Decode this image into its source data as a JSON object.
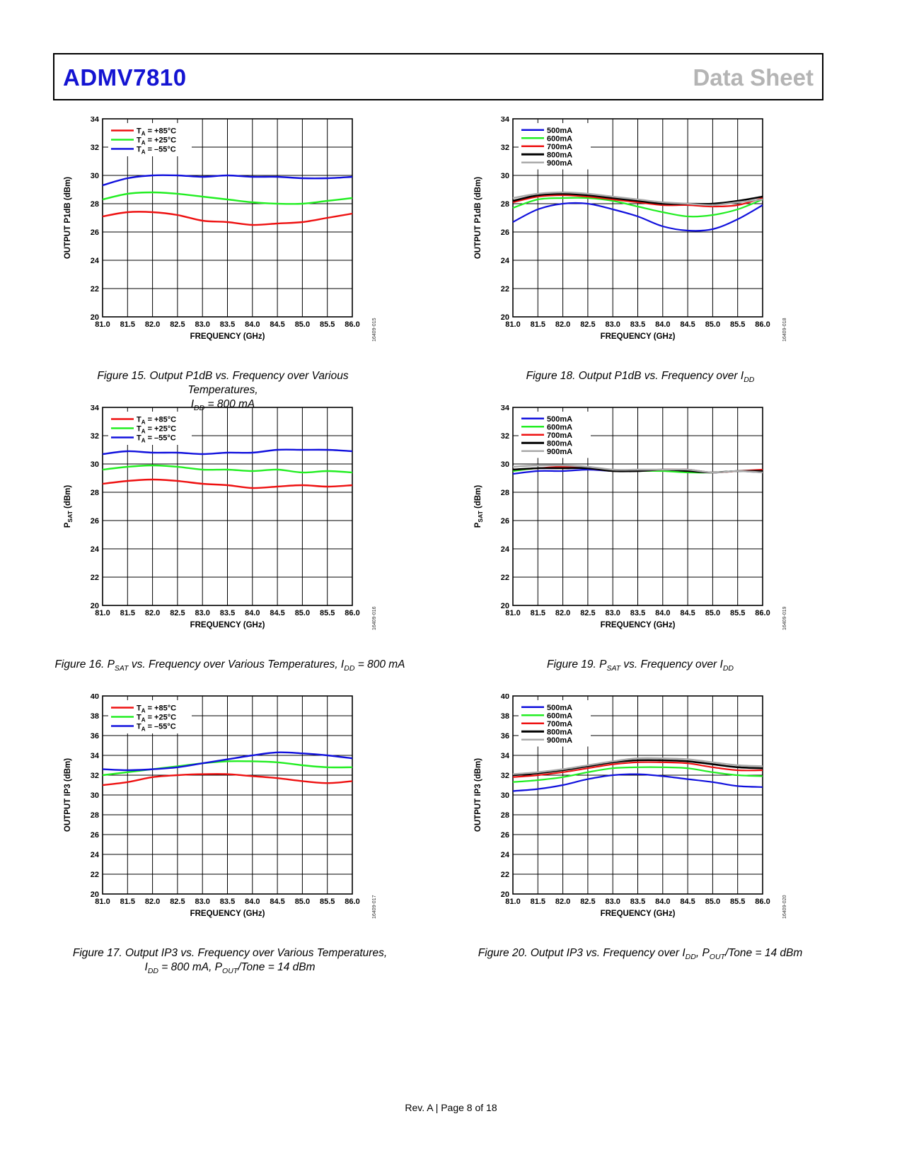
{
  "header": {
    "part_number": "ADMV7810",
    "doc_type": "Data Sheet"
  },
  "footer": "Rev. A | Page 8 of 18",
  "colors": {
    "part_blue": "#1414d2",
    "doc_gray": "#b4b4b4"
  },
  "captions": {
    "fig15": {
      "l1": "Figure 15. Output P1dB vs. Frequency over Various Temperatures,",
      "l2a": "I",
      "l2sub": "DD",
      "l2b": " = 800 mA"
    },
    "fig16": {
      "a": "Figure 16. P",
      "asub": "SAT",
      "b": " vs. Frequency over Various Temperatures, I",
      "bsub": "DD",
      "c": " = 800 mA"
    },
    "fig17": {
      "l1": "Figure 17. Output IP3 vs. Frequency over Various Temperatures,",
      "l2a": "I",
      "l2sub": "DD",
      "l2b": " = 800 mA, P",
      "l2sub2": "OUT",
      "l2c": "/Tone = 14 dBm"
    },
    "fig18": {
      "a": "Figure 18. Output P1dB vs. Frequency over I",
      "asub": "DD"
    },
    "fig19": {
      "a": "Figure 19. P",
      "asub": "SAT",
      "b": " vs. Frequency over I",
      "bsub": "DD"
    },
    "fig20": {
      "a": "Figure 20. Output IP3 vs. Frequency over I",
      "asub": "DD",
      "b": ", P",
      "bsub": "OUT",
      "c": "/Tone = 14 dBm"
    }
  },
  "chart_data": [
    {
      "id": "fig15",
      "type": "line",
      "ylabel": "OUTPUT P1dB (dBm)",
      "ylabel_sub": "",
      "ylabel_tail": "",
      "xlabel": "FREQUENCY (GHz)",
      "xlim": [
        81.0,
        86.0
      ],
      "ylim": [
        20,
        34
      ],
      "ystep": 2,
      "code": "16409-015",
      "x_ticks": [
        "81.0",
        "81.5",
        "82.0",
        "82.5",
        "83.0",
        "83.5",
        "84.0",
        "84.5",
        "85.0",
        "85.5",
        "86.0"
      ],
      "x": [
        81.0,
        81.5,
        82.0,
        82.5,
        83.0,
        83.5,
        84.0,
        84.5,
        85.0,
        85.5,
        86.0
      ],
      "series": [
        {
          "name": "TA = +85°C",
          "label_pre": "T",
          "label_sub": "A",
          "label_post": " = +85°C",
          "color": "#ee1111",
          "values": [
            27.1,
            27.4,
            27.4,
            27.2,
            26.8,
            26.7,
            26.5,
            26.6,
            26.7,
            27.0,
            27.3
          ]
        },
        {
          "name": "TA = +25°C",
          "label_pre": "T",
          "label_sub": "A",
          "label_post": " = +25°C",
          "color": "#22ee22",
          "values": [
            28.3,
            28.7,
            28.8,
            28.7,
            28.5,
            28.3,
            28.1,
            28.0,
            28.0,
            28.2,
            28.4
          ]
        },
        {
          "name": "TA = -55°C",
          "label_pre": "T",
          "label_sub": "A",
          "label_post": " = –55°C",
          "color": "#1111dd",
          "values": [
            29.3,
            29.8,
            30.0,
            30.0,
            29.9,
            30.0,
            29.9,
            29.9,
            29.8,
            29.8,
            29.9
          ]
        }
      ]
    },
    {
      "id": "fig16",
      "type": "line",
      "ylabel": "P",
      "ylabel_sub": "SAT",
      "ylabel_tail": " (dBm)",
      "xlabel": "FREQUENCY (GHz)",
      "xlim": [
        81.0,
        86.0
      ],
      "ylim": [
        20,
        34
      ],
      "ystep": 2,
      "code": "16409-016",
      "x_ticks": [
        "81.0",
        "81.5",
        "82.0",
        "82.5",
        "83.0",
        "83.5",
        "84.0",
        "84.5",
        "85.0",
        "85.5",
        "86.0"
      ],
      "x": [
        81.0,
        81.5,
        82.0,
        82.5,
        83.0,
        83.5,
        84.0,
        84.5,
        85.0,
        85.5,
        86.0
      ],
      "series": [
        {
          "name": "TA = +85°C",
          "label_pre": "T",
          "label_sub": "A",
          "label_post": " = +85°C",
          "color": "#ee1111",
          "values": [
            28.6,
            28.8,
            28.9,
            28.8,
            28.6,
            28.5,
            28.3,
            28.4,
            28.5,
            28.4,
            28.5
          ]
        },
        {
          "name": "TA = +25°C",
          "label_pre": "T",
          "label_sub": "A",
          "label_post": " = +25°C",
          "color": "#22ee22",
          "values": [
            29.6,
            29.8,
            29.9,
            29.8,
            29.6,
            29.6,
            29.5,
            29.6,
            29.4,
            29.5,
            29.4
          ]
        },
        {
          "name": "TA = -55°C",
          "label_pre": "T",
          "label_sub": "A",
          "label_post": " = –55°C",
          "color": "#1111dd",
          "values": [
            30.7,
            30.9,
            30.8,
            30.8,
            30.7,
            30.8,
            30.8,
            31.0,
            31.0,
            31.0,
            30.9
          ]
        }
      ]
    },
    {
      "id": "fig17",
      "type": "line",
      "ylabel": "OUTPUT IP3 (dBm)",
      "ylabel_sub": "",
      "ylabel_tail": "",
      "xlabel": "FREQUENCY (GHz)",
      "xlim": [
        81.0,
        86.0
      ],
      "ylim": [
        20,
        40
      ],
      "ystep": 2,
      "code": "16409-017",
      "x_ticks": [
        "81.0",
        "81.5",
        "82.0",
        "82.5",
        "83.0",
        "83.5",
        "84.0",
        "84.5",
        "85.0",
        "85.5",
        "86.0"
      ],
      "x": [
        81.0,
        81.5,
        82.0,
        82.5,
        83.0,
        83.5,
        84.0,
        84.5,
        85.0,
        85.5,
        86.0
      ],
      "series": [
        {
          "name": "TA = +85°C",
          "label_pre": "T",
          "label_sub": "A",
          "label_post": " = +85°C",
          "color": "#ee1111",
          "values": [
            31.0,
            31.3,
            31.8,
            32.0,
            32.1,
            32.1,
            31.9,
            31.7,
            31.4,
            31.2,
            31.4
          ]
        },
        {
          "name": "TA = +25°C",
          "label_pre": "T",
          "label_sub": "A",
          "label_post": " = +25°C",
          "color": "#22ee22",
          "values": [
            32.0,
            32.3,
            32.6,
            32.9,
            33.2,
            33.4,
            33.4,
            33.3,
            33.0,
            32.8,
            32.8
          ]
        },
        {
          "name": "TA = -55°C",
          "label_pre": "T",
          "label_sub": "A",
          "label_post": " = –55°C",
          "color": "#1111dd",
          "values": [
            32.6,
            32.5,
            32.6,
            32.8,
            33.2,
            33.6,
            34.0,
            34.3,
            34.2,
            34.0,
            33.7
          ]
        }
      ]
    },
    {
      "id": "fig18",
      "type": "line",
      "ylabel": "OUTPUT P1dB (dBm)",
      "ylabel_sub": "",
      "ylabel_tail": "",
      "xlabel": "FREQUENCY (GHz)",
      "xlim": [
        81.0,
        86.0
      ],
      "ylim": [
        20,
        34
      ],
      "ystep": 2,
      "code": "16409-018",
      "x_ticks": [
        "81.0",
        "81.5",
        "82.0",
        "82.5",
        "83.0",
        "83.5",
        "84.0",
        "84.5",
        "85.0",
        "85.5",
        "86.0"
      ],
      "x": [
        81.0,
        81.5,
        82.0,
        82.5,
        83.0,
        83.5,
        84.0,
        84.5,
        85.0,
        85.5,
        86.0
      ],
      "series": [
        {
          "name": "500mA",
          "label_pre": "500mA",
          "label_sub": "",
          "label_post": "",
          "color": "#1111dd",
          "values": [
            26.7,
            27.6,
            28.0,
            28.0,
            27.6,
            27.1,
            26.4,
            26.1,
            26.2,
            26.9,
            27.9
          ]
        },
        {
          "name": "600mA",
          "label_pre": "600mA",
          "label_sub": "",
          "label_post": "",
          "color": "#22ee22",
          "values": [
            27.7,
            28.3,
            28.4,
            28.4,
            28.2,
            27.8,
            27.4,
            27.1,
            27.2,
            27.6,
            28.3
          ]
        },
        {
          "name": "700mA",
          "label_pre": "700mA",
          "label_sub": "",
          "label_post": "",
          "color": "#ee1111",
          "values": [
            28.1,
            28.5,
            28.6,
            28.5,
            28.3,
            28.1,
            27.9,
            27.9,
            27.8,
            27.9,
            28.4
          ]
        },
        {
          "name": "800mA",
          "label_pre": "800mA",
          "label_sub": "",
          "label_post": "",
          "color": "#000000",
          "values": [
            28.2,
            28.6,
            28.7,
            28.6,
            28.4,
            28.2,
            28.0,
            28.0,
            28.0,
            28.2,
            28.5
          ]
        },
        {
          "name": "900mA",
          "label_pre": "900mA",
          "label_sub": "",
          "label_post": "",
          "color": "#aaaaaa",
          "values": [
            28.4,
            28.7,
            28.8,
            28.7,
            28.5,
            28.3,
            28.1,
            28.0,
            27.9,
            28.1,
            28.3
          ]
        }
      ]
    },
    {
      "id": "fig19",
      "type": "line",
      "ylabel": "P",
      "ylabel_sub": "SAT",
      "ylabel_tail": " (dBm)",
      "xlabel": "FREQUENCY (GHz)",
      "xlim": [
        81.0,
        86.0
      ],
      "ylim": [
        20,
        34
      ],
      "ystep": 2,
      "code": "16409-019",
      "x_ticks": [
        "81.0",
        "81.5",
        "82.0",
        "82.5",
        "83.0",
        "83.5",
        "84.0",
        "84.5",
        "85.0",
        "85.5",
        "86.0"
      ],
      "x": [
        81.0,
        81.5,
        82.0,
        82.5,
        83.0,
        83.5,
        84.0,
        84.5,
        85.0,
        85.5,
        86.0
      ],
      "series": [
        {
          "name": "500mA",
          "label_pre": "500mA",
          "label_sub": "",
          "label_post": "",
          "color": "#1111dd",
          "values": [
            29.3,
            29.5,
            29.5,
            29.6,
            29.5,
            29.5,
            29.6,
            29.6,
            29.4,
            29.5,
            29.4
          ]
        },
        {
          "name": "600mA",
          "label_pre": "600mA",
          "label_sub": "",
          "label_post": "",
          "color": "#22ee22",
          "values": [
            29.5,
            29.7,
            29.7,
            29.7,
            29.5,
            29.5,
            29.5,
            29.4,
            29.4,
            29.5,
            29.5
          ]
        },
        {
          "name": "700mA",
          "label_pre": "700mA",
          "label_sub": "",
          "label_post": "",
          "color": "#ee1111",
          "values": [
            29.6,
            29.7,
            29.8,
            29.7,
            29.5,
            29.5,
            29.6,
            29.6,
            29.4,
            29.5,
            29.6
          ]
        },
        {
          "name": "800mA",
          "label_pre": "800mA",
          "label_sub": "",
          "label_post": "",
          "color": "#000000",
          "values": [
            29.6,
            29.7,
            29.7,
            29.7,
            29.5,
            29.5,
            29.6,
            29.5,
            29.4,
            29.5,
            29.5
          ]
        },
        {
          "name": "900mA",
          "label_pre": "900mA",
          "label_sub": "",
          "label_post": "",
          "color": "#aaaaaa",
          "values": [
            29.8,
            29.9,
            29.9,
            29.8,
            29.6,
            29.6,
            29.6,
            29.6,
            29.4,
            29.5,
            29.4
          ]
        }
      ]
    },
    {
      "id": "fig20",
      "type": "line",
      "ylabel": "OUTPUT IP3 (dBm)",
      "ylabel_sub": "",
      "ylabel_tail": "",
      "xlabel": "FREQUENCY (GHz)",
      "xlim": [
        81.0,
        86.0
      ],
      "ylim": [
        20,
        40
      ],
      "ystep": 2,
      "code": "16409-020",
      "x_ticks": [
        "81.0",
        "81.5",
        "82.0",
        "82.5",
        "83.0",
        "83.5",
        "84.0",
        "84.5",
        "85.0",
        "85.5",
        "86.0"
      ],
      "x": [
        81.0,
        81.5,
        82.0,
        82.5,
        83.0,
        83.5,
        84.0,
        84.5,
        85.0,
        85.5,
        86.0
      ],
      "series": [
        {
          "name": "500mA",
          "label_pre": "500mA",
          "label_sub": "",
          "label_post": "",
          "color": "#1111dd",
          "values": [
            30.4,
            30.6,
            31.0,
            31.6,
            32.0,
            32.1,
            31.9,
            31.6,
            31.3,
            30.9,
            30.8
          ]
        },
        {
          "name": "600mA",
          "label_pre": "600mA",
          "label_sub": "",
          "label_post": "",
          "color": "#22ee22",
          "values": [
            31.3,
            31.5,
            31.8,
            32.3,
            32.7,
            32.8,
            32.8,
            32.7,
            32.3,
            32.0,
            31.9
          ]
        },
        {
          "name": "700mA",
          "label_pre": "700mA",
          "label_sub": "",
          "label_post": "",
          "color": "#ee1111",
          "values": [
            31.8,
            32.0,
            32.3,
            32.7,
            33.1,
            33.3,
            33.3,
            33.2,
            32.8,
            32.5,
            32.5
          ]
        },
        {
          "name": "800mA",
          "label_pre": "800mA",
          "label_sub": "",
          "label_post": "",
          "color": "#000000",
          "values": [
            32.0,
            32.2,
            32.5,
            32.9,
            33.3,
            33.5,
            33.5,
            33.4,
            33.1,
            32.8,
            32.7
          ]
        },
        {
          "name": "900mA",
          "label_pre": "900mA",
          "label_sub": "",
          "label_post": "",
          "color": "#aaaaaa",
          "values": [
            32.1,
            32.3,
            32.6,
            33.0,
            33.4,
            33.7,
            33.7,
            33.6,
            33.3,
            33.0,
            32.9
          ]
        }
      ]
    }
  ]
}
